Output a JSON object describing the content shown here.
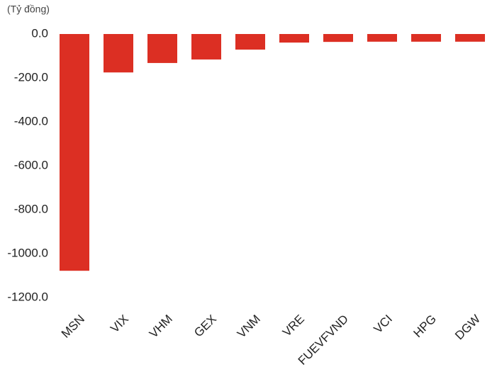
{
  "chart_data": {
    "type": "bar",
    "unit_label": "(Tỷ đồng)",
    "categories": [
      "MSN",
      "VIX",
      "VHM",
      "GEX",
      "VNM",
      "VRE",
      "FUEVFVND",
      "VCI",
      "HPG",
      "DGW"
    ],
    "values": [
      -1078,
      -175,
      -132,
      -116,
      -71,
      -39,
      -36,
      -35,
      -35,
      -35
    ],
    "color": "#dc2f23",
    "ylim": [
      -1200,
      0
    ],
    "yticks": [
      {
        "value": 0,
        "label": "0.0"
      },
      {
        "value": -200,
        "label": "-200.0"
      },
      {
        "value": -400,
        "label": "-400.0"
      },
      {
        "value": -600,
        "label": "-600.0"
      },
      {
        "value": -800,
        "label": "-800.0"
      },
      {
        "value": -1000,
        "label": "-1000.0"
      },
      {
        "value": -1200,
        "label": "-1200.0"
      }
    ],
    "grid": false
  }
}
